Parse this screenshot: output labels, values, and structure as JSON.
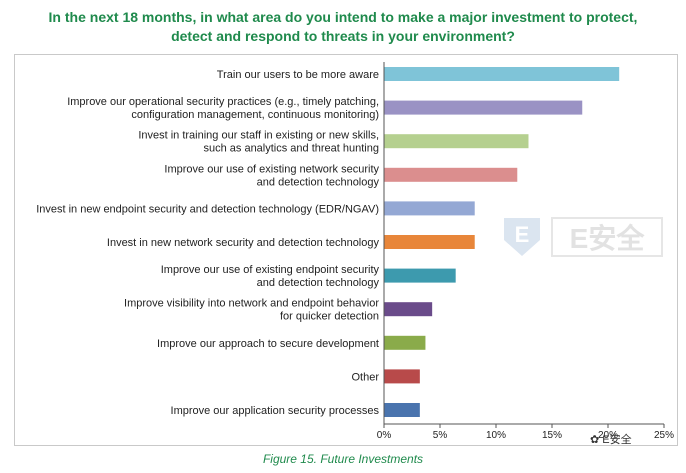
{
  "chart_data": {
    "type": "bar",
    "orientation": "horizontal",
    "title_lines": [
      "In the next 18 months, in what area do you intend to make a major investment to protect,",
      "detect and respond to threats in your environment?"
    ],
    "categories": [
      {
        "lines": [
          "Train our users to be more aware"
        ],
        "value": 21.0,
        "color": "#7fc4d8"
      },
      {
        "lines": [
          "Improve our operational security practices (e.g., timely patching,",
          "configuration management, continuous monitoring)"
        ],
        "value": 17.7,
        "color": "#9a92c4"
      },
      {
        "lines": [
          "Invest in training our staff in existing or new skills,",
          "such as analytics and threat hunting"
        ],
        "value": 12.9,
        "color": "#b5d08f"
      },
      {
        "lines": [
          "Improve our use of existing network security",
          "and detection technology"
        ],
        "value": 11.9,
        "color": "#db8e8e"
      },
      {
        "lines": [
          "Invest in new endpoint security and detection technology (EDR/NGAV)"
        ],
        "value": 8.1,
        "color": "#94a8d4"
      },
      {
        "lines": [
          "Invest in new network security and detection technology"
        ],
        "value": 8.1,
        "color": "#e8863a"
      },
      {
        "lines": [
          "Improve our use of existing endpoint security",
          "and detection technology"
        ],
        "value": 6.4,
        "color": "#3d9aae"
      },
      {
        "lines": [
          "Improve visibility into network and endpoint behavior",
          "for quicker detection"
        ],
        "value": 4.3,
        "color": "#6a4b8a"
      },
      {
        "lines": [
          "Improve our approach to secure development"
        ],
        "value": 3.7,
        "color": "#8aab4a"
      },
      {
        "lines": [
          "Other"
        ],
        "value": 3.2,
        "color": "#b84a4a"
      },
      {
        "lines": [
          "Improve our application security processes"
        ],
        "value": 3.2,
        "color": "#4a74ae"
      }
    ],
    "x_ticks": [
      "0%",
      "5%",
      "10%",
      "15%",
      "20%",
      "25%"
    ],
    "xlim": [
      0,
      25
    ],
    "grid": false
  },
  "caption": "Figure 15. Future Investments",
  "watermark": {
    "logo_text": "E安全",
    "footer_text": "E安全"
  }
}
